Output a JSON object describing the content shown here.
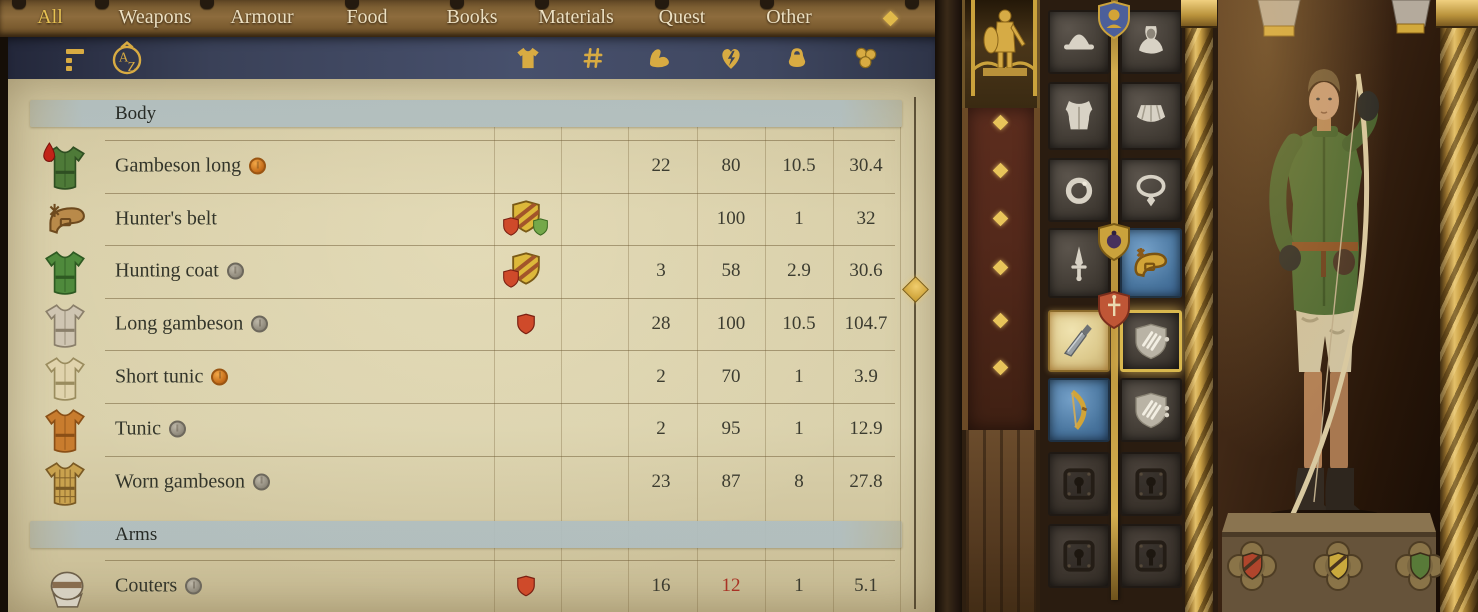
{
  "colors": {
    "gold": "#d8ab42",
    "parchment": "#d8cda6",
    "navy": "#3c4458",
    "band": "#b0bec0",
    "red_value": "#a93224",
    "wood": "#7d5f33"
  },
  "nav": {
    "tabs": [
      {
        "label": "All",
        "active": true
      },
      {
        "label": "Weapons",
        "active": false
      },
      {
        "label": "Armour",
        "active": false
      },
      {
        "label": "Food",
        "active": false
      },
      {
        "label": "Books",
        "active": false
      },
      {
        "label": "Materials",
        "active": false
      },
      {
        "label": "Quest",
        "active": false
      },
      {
        "label": "Other",
        "active": false
      }
    ],
    "more_indicator": "diamond"
  },
  "toolbar": {
    "filter_icon": "filter",
    "sort_icon": "sort-az",
    "columns": [
      {
        "id": "equipped",
        "icon": "tunic"
      },
      {
        "id": "amount",
        "icon": "hash"
      },
      {
        "id": "strength",
        "icon": "arm"
      },
      {
        "id": "charisma",
        "icon": "heart-bolt"
      },
      {
        "id": "weight",
        "icon": "weight"
      },
      {
        "id": "price",
        "icon": "coins"
      }
    ]
  },
  "table": {
    "sections": [
      {
        "title": "Body",
        "items": [
          {
            "name": "Gambeson long",
            "quality": "copper",
            "blood": true,
            "badges": [],
            "icon": {
              "shape": "tunic",
              "color": "#4e7a38",
              "dark": "#2f4f22"
            },
            "values": {
              "amount": "",
              "strength": "22",
              "charisma": "80",
              "weight": "10.5",
              "price": "30.4"
            },
            "low": null
          },
          {
            "name": "Hunter's belt",
            "quality": null,
            "blood": false,
            "badges": [
              "yellow-striped",
              "red",
              "green"
            ],
            "icon": {
              "shape": "belt",
              "color": "#b98a4a",
              "dark": "#6e4a1e"
            },
            "values": {
              "amount": "",
              "strength": "",
              "charisma": "100",
              "weight": "1",
              "price": "32"
            },
            "low": null
          },
          {
            "name": "Hunting coat",
            "quality": "silver",
            "blood": false,
            "badges": [
              "yellow-striped",
              "red"
            ],
            "icon": {
              "shape": "tunic",
              "color": "#4f8a3c",
              "dark": "#2e5a22"
            },
            "values": {
              "amount": "",
              "strength": "3",
              "charisma": "58",
              "weight": "2.9",
              "price": "30.6"
            },
            "low": null
          },
          {
            "name": "Long gambeson",
            "quality": "silver",
            "blood": false,
            "badges": [
              "red"
            ],
            "icon": {
              "shape": "tunic",
              "color": "#cfc5b2",
              "dark": "#8a7f6a"
            },
            "values": {
              "amount": "",
              "strength": "28",
              "charisma": "100",
              "weight": "10.5",
              "price": "104.7"
            },
            "low": null
          },
          {
            "name": "Short tunic",
            "quality": "copper",
            "blood": false,
            "badges": [],
            "icon": {
              "shape": "tunic",
              "color": "#e0d3ac",
              "dark": "#9a8c5e"
            },
            "values": {
              "amount": "",
              "strength": "2",
              "charisma": "70",
              "weight": "1",
              "price": "3.9"
            },
            "low": null
          },
          {
            "name": "Tunic",
            "quality": "silver",
            "blood": false,
            "badges": [],
            "icon": {
              "shape": "tunic",
              "color": "#c87c2e",
              "dark": "#8a4f16"
            },
            "values": {
              "amount": "",
              "strength": "2",
              "charisma": "95",
              "weight": "1",
              "price": "12.9"
            },
            "low": null
          },
          {
            "name": "Worn gambeson",
            "quality": "silver",
            "blood": false,
            "badges": [],
            "icon": {
              "shape": "tunic",
              "color": "#c9a24e",
              "dark": "#7a5a24",
              "plaid": true
            },
            "values": {
              "amount": "",
              "strength": "23",
              "charisma": "87",
              "weight": "8",
              "price": "27.8"
            },
            "low": null
          }
        ]
      },
      {
        "title": "Arms",
        "items": [
          {
            "name": "Couters",
            "quality": "silver",
            "blood": false,
            "badges": [
              "red"
            ],
            "icon": {
              "shape": "couter",
              "color": "#d6d0c0",
              "dark": "#6e604a"
            },
            "values": {
              "amount": "",
              "strength": "16",
              "charisma": "12",
              "weight": "1",
              "price": "5.1"
            },
            "low": "charisma"
          }
        ]
      }
    ]
  },
  "equipment": {
    "category_badges": [
      {
        "name": "head",
        "icon": "face-shield"
      },
      {
        "name": "accessories",
        "icon": "pouch-shield"
      },
      {
        "name": "weapons",
        "icon": "sword-shield"
      }
    ],
    "slots": [
      {
        "name": "helmet",
        "state": "empty"
      },
      {
        "name": "coif",
        "state": "empty"
      },
      {
        "name": "body-armour",
        "state": "empty"
      },
      {
        "name": "collar",
        "state": "empty"
      },
      {
        "name": "ring",
        "state": "empty"
      },
      {
        "name": "necklace",
        "state": "empty"
      },
      {
        "name": "dagger",
        "state": "empty"
      },
      {
        "name": "belt",
        "state": "equipped-blue"
      },
      {
        "name": "melee-weapon",
        "state": "equipped-gold"
      },
      {
        "name": "shield-slot-1",
        "state": "empty-highlight",
        "dots": 1
      },
      {
        "name": "bow",
        "state": "equipped-blue"
      },
      {
        "name": "shield-slot-2",
        "state": "empty",
        "dots": 2
      },
      {
        "name": "locked-slot-1",
        "state": "locked"
      },
      {
        "name": "locked-slot-2",
        "state": "locked"
      },
      {
        "name": "locked-slot-3",
        "state": "locked"
      },
      {
        "name": "locked-slot-4",
        "state": "locked"
      }
    ],
    "pedestal_shields": [
      "red",
      "yellow",
      "green"
    ],
    "character": "archer-green-coat-with-bow"
  }
}
